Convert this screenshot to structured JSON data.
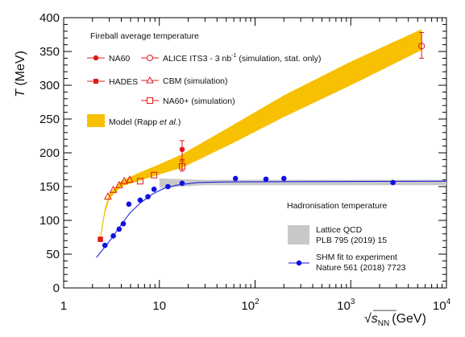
{
  "chart_data": {
    "type": "scatter",
    "x_scale": "log",
    "xlim": [
      1,
      10000
    ],
    "ylim": [
      0,
      400
    ],
    "grid": false,
    "xlabel_prefix": "√",
    "xlabel_var": "s",
    "xlabel_sub": "NN",
    "xlabel_unit": "(GeV)",
    "ylabel": "T",
    "ylabel_unit": "(MeV)",
    "x_ticks": [
      {
        "v": 1,
        "label": "1",
        "exp": ""
      },
      {
        "v": 10,
        "label": "10",
        "exp": ""
      },
      {
        "v": 100,
        "label": "10",
        "exp": "2"
      },
      {
        "v": 1000,
        "label": "10",
        "exp": "3"
      },
      {
        "v": 10000,
        "label": "10",
        "exp": "4"
      }
    ],
    "y_ticks": [
      0,
      50,
      100,
      150,
      200,
      250,
      300,
      350,
      400
    ],
    "legend_top_title": "Fireball average temperature",
    "legend_bottom_title": "Hadronisation temperature",
    "colors": {
      "model_band": "#f7c000",
      "lattice_band": "#c8c8c8",
      "na60": "#e01818",
      "hades": "#e01818",
      "alice": "#e01818",
      "cbm": "#e01818",
      "na60plus": "#e01818",
      "shm": "#1010e0"
    },
    "series": [
      {
        "name": "NA60",
        "marker": "filled-circle",
        "points": [
          [
            17.3,
            205
          ]
        ],
        "err": [
          [
            17.3,
            190,
            218
          ]
        ]
      },
      {
        "name": "HADES",
        "marker": "filled-square",
        "points": [
          [
            2.42,
            72
          ]
        ]
      },
      {
        "name": "ALICE ITS3 - 3 nb",
        "name_sup": "-1",
        "name_suffix": " (simulation, stat. only)",
        "marker": "open-circle",
        "points": [
          [
            5500,
            358
          ]
        ],
        "err": [
          [
            5500,
            340,
            378
          ]
        ]
      },
      {
        "name": "CBM (simulation)",
        "marker": "open-triangle",
        "points": [
          [
            2.9,
            135
          ],
          [
            3.3,
            145
          ],
          [
            3.8,
            152
          ],
          [
            4.3,
            158
          ],
          [
            4.9,
            160
          ]
        ]
      },
      {
        "name": "NA60+ (simulation)",
        "marker": "open-square",
        "points": [
          [
            6.3,
            158
          ],
          [
            8.8,
            167
          ],
          [
            17.3,
            180
          ]
        ],
        "err": [
          [
            17.3,
            173,
            188
          ]
        ]
      },
      {
        "name": "Model (Rapp",
        "name_italic": "et al.",
        "name_suffix": ")",
        "marker": "band",
        "band": [
          [
            2.42,
            70,
            80
          ],
          [
            2.7,
            110,
            118
          ],
          [
            3.0,
            132,
            140
          ],
          [
            4.0,
            150,
            158
          ],
          [
            6.0,
            158,
            170
          ],
          [
            10.0,
            168,
            183
          ],
          [
            17.3,
            178,
            198
          ],
          [
            60.0,
            215,
            242
          ],
          [
            200.0,
            253,
            285
          ],
          [
            1000.0,
            300,
            335
          ],
          [
            5500.0,
            352,
            383
          ]
        ]
      },
      {
        "name": "Lattice QCD",
        "name_line2": "PLB 795 (2019) 15",
        "marker": "band",
        "band": [
          [
            10,
            148,
            162
          ],
          [
            30,
            152,
            160
          ],
          [
            10000,
            152,
            160
          ]
        ]
      },
      {
        "name": "SHM fit to experiment",
        "name_line2": "Nature 561 (2018) 7723",
        "marker": "filled-circle",
        "points": [
          [
            2.7,
            63
          ],
          [
            3.3,
            77
          ],
          [
            3.8,
            87
          ],
          [
            4.2,
            95
          ],
          [
            4.8,
            124
          ],
          [
            6.3,
            130
          ],
          [
            7.6,
            135
          ],
          [
            8.8,
            146
          ],
          [
            12.3,
            150
          ],
          [
            17.3,
            155
          ],
          [
            62.4,
            162
          ],
          [
            130,
            161
          ],
          [
            200,
            162
          ],
          [
            2760,
            156
          ]
        ],
        "curve": [
          [
            2.2,
            45
          ],
          [
            2.6,
            58
          ],
          [
            3.2,
            74
          ],
          [
            4.0,
            94
          ],
          [
            5.0,
            112
          ],
          [
            6.5,
            127
          ],
          [
            8.5,
            139
          ],
          [
            11,
            147
          ],
          [
            15,
            152
          ],
          [
            25,
            156
          ],
          [
            50,
            157
          ],
          [
            10000,
            158
          ]
        ]
      }
    ]
  }
}
